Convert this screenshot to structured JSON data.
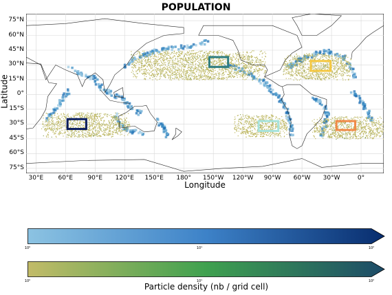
{
  "title": "POPULATION",
  "axes": {
    "xlabel": "Longitude",
    "ylabel": "Latitude",
    "lat_ticks": [
      {
        "label": "75°N",
        "v": 75
      },
      {
        "label": "60°N",
        "v": 60
      },
      {
        "label": "45°N",
        "v": 45
      },
      {
        "label": "30°N",
        "v": 30
      },
      {
        "label": "15°N",
        "v": 15
      },
      {
        "label": "0°",
        "v": 0
      },
      {
        "label": "15°S",
        "v": -15
      },
      {
        "label": "30°S",
        "v": -30
      },
      {
        "label": "45°S",
        "v": -45
      },
      {
        "label": "60°S",
        "v": -60
      },
      {
        "label": "75°S",
        "v": -75
      }
    ],
    "lon_ticks": [
      {
        "label": "30°E",
        "v": 30
      },
      {
        "label": "60°E",
        "v": 60
      },
      {
        "label": "90°E",
        "v": 90
      },
      {
        "label": "120°E",
        "v": 120
      },
      {
        "label": "150°E",
        "v": 150
      },
      {
        "label": "180°",
        "v": 180
      },
      {
        "label": "150°W",
        "v": 210
      },
      {
        "label": "120°W",
        "v": 240
      },
      {
        "label": "90°W",
        "v": 270
      },
      {
        "label": "60°W",
        "v": 300
      },
      {
        "label": "30°W",
        "v": 330
      },
      {
        "label": "0°",
        "v": 360
      }
    ],
    "lon_range": [
      20,
      383
    ],
    "lat_range": [
      -80,
      82
    ]
  },
  "release_boxes": [
    {
      "id": "north-pacific",
      "color": "#2e7d80",
      "lon": [
        206,
        225
      ],
      "lat": [
        28,
        38
      ]
    },
    {
      "id": "north-atlantic",
      "color": "#f5c842",
      "lon": [
        309,
        329
      ],
      "lat": [
        24,
        34
      ]
    },
    {
      "id": "indian-ocean",
      "color": "#0c1e5e",
      "lon": [
        62,
        81
      ],
      "lat": [
        -35,
        -25
      ]
    },
    {
      "id": "south-pacific",
      "color": "#a6e3dc",
      "lon": [
        256,
        276
      ],
      "lat": [
        -37,
        -27
      ]
    },
    {
      "id": "south-atlantic",
      "color": "#f08a48",
      "lon": [
        335,
        354
      ],
      "lat": [
        -36,
        -27
      ]
    }
  ],
  "density_regions": [
    {
      "id": "north-pacific",
      "lon": [
        126,
        263
      ],
      "lat": [
        15,
        45
      ],
      "mode": "sparse"
    },
    {
      "id": "north-atlantic",
      "lon": [
        280,
        350
      ],
      "lat": [
        15,
        42
      ],
      "mode": "sparse"
    },
    {
      "id": "indian-ocean",
      "lon": [
        35,
        125
      ],
      "lat": [
        -43,
        -18
      ],
      "mode": "sparse"
    },
    {
      "id": "south-pacific",
      "lon": [
        230,
        285
      ],
      "lat": [
        -43,
        -20
      ],
      "mode": "sparse"
    },
    {
      "id": "south-atlantic",
      "lon": [
        310,
        385
      ],
      "lat": [
        -45,
        -22
      ],
      "mode": "sparse"
    }
  ],
  "colorbars": [
    {
      "colors": [
        "#8cc3e2",
        "#3d82c8",
        "#082d6e"
      ],
      "ticks": [
        "10⁰",
        "10¹",
        "10²"
      ]
    },
    {
      "colors": [
        "#c2bb68",
        "#3fa14f",
        "#1d4b68"
      ],
      "ticks": [
        "10⁰",
        "10¹",
        "10²"
      ]
    }
  ],
  "colorbar_label": "Particle density (nb / grid cell)"
}
